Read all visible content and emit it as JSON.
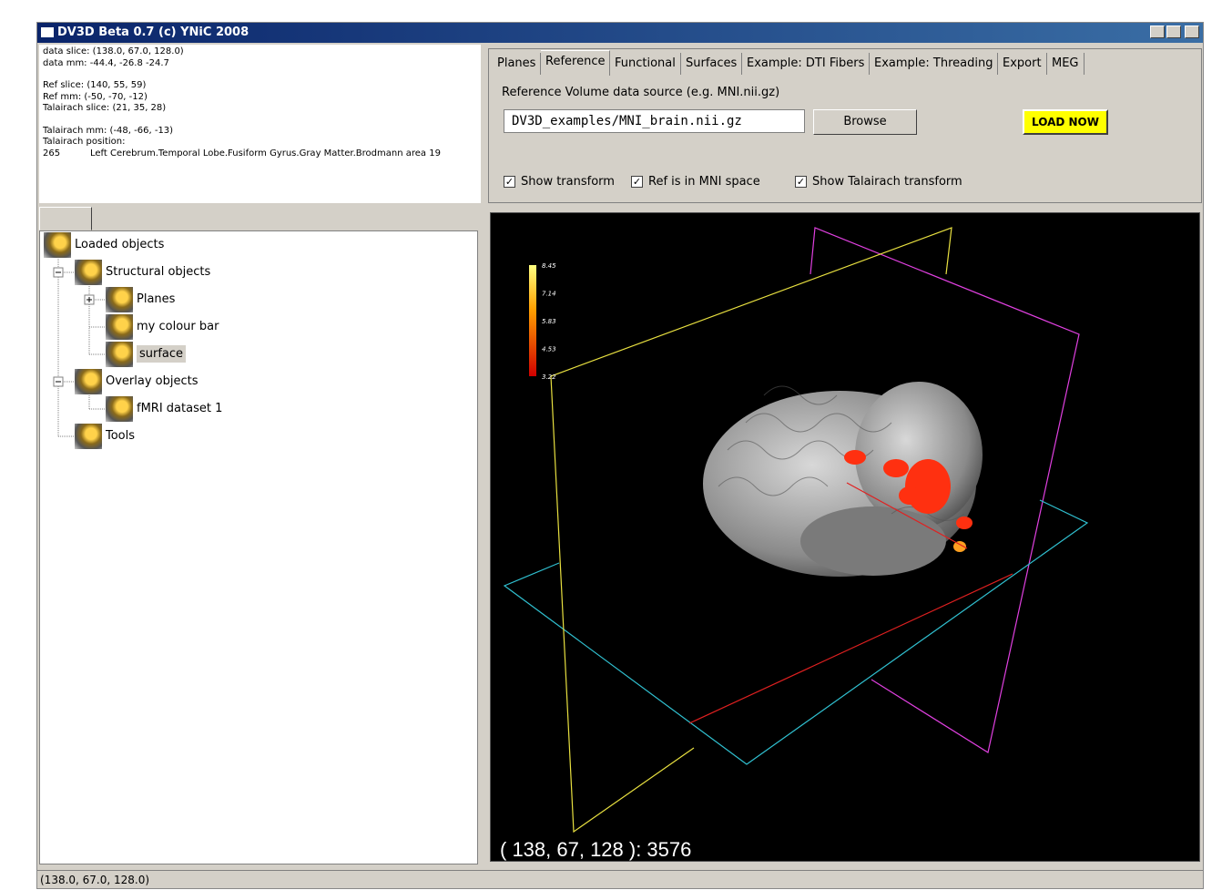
{
  "window": {
    "title": "DV3D Beta 0.7 (c) YNiC 2008"
  },
  "info": {
    "lines": [
      "data slice: (138.0, 67.0, 128.0)",
      "data mm: -44.4, -26.8 -24.7",
      "Ref slice: (140, 55, 59)",
      "Ref mm: (-50, -70, -12)",
      "Talairach slice: (21, 35, 28)",
      "Talairach mm: (-48, -66, -13)",
      "Talairach position:"
    ],
    "position_code": "265",
    "position_label": "Left Cerebrum.Temporal Lobe.Fusiform Gyrus.Gray Matter.Brodmann area 19"
  },
  "tree": {
    "nodes": [
      {
        "label": "Loaded objects"
      },
      {
        "label": "Structural objects"
      },
      {
        "label": "Planes"
      },
      {
        "label": "my colour bar"
      },
      {
        "label": "surface"
      },
      {
        "label": "Overlay objects"
      },
      {
        "label": "fMRI dataset 1"
      },
      {
        "label": "Tools"
      }
    ]
  },
  "tabs": [
    "Planes",
    "Reference",
    "Functional",
    "Surfaces",
    "Example: DTI Fibers",
    "Example: Threading",
    "Export",
    "MEG"
  ],
  "reference": {
    "source_label": "Reference Volume data source (e.g. MNI.nii.gz)",
    "path": "DV3D_examples/MNI_brain.nii.gz",
    "browse": "Browse",
    "load": "LOAD NOW",
    "checkboxes": [
      "Show transform",
      "Ref is in MNI space",
      "Show Talairach transform"
    ]
  },
  "viewer": {
    "colorbar_labels": [
      "8.45",
      "7.14",
      "5.83",
      "4.53",
      "3.22"
    ],
    "readout": "( 138, 67, 128 ): 3576"
  },
  "status": "(138.0, 67.0, 128.0)"
}
